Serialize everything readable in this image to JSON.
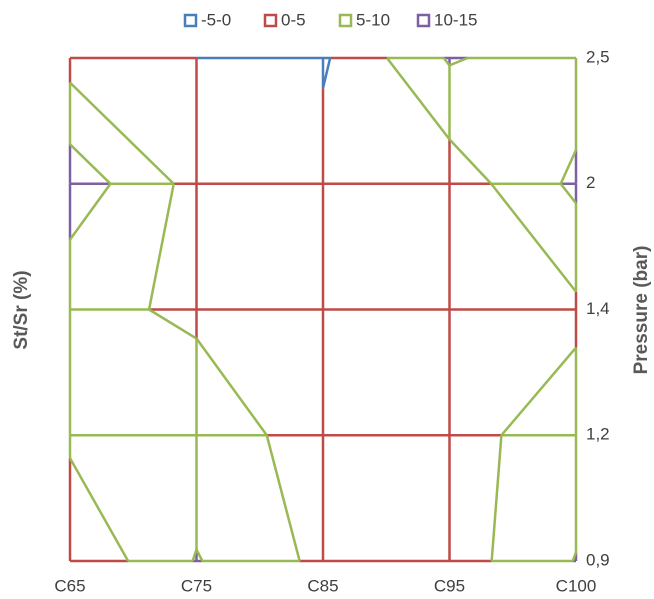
{
  "chart_data": {
    "type": "contour",
    "categories": [
      "C65",
      "C75",
      "C85",
      "C95",
      "C100"
    ],
    "y2categories": [
      "0,9",
      "1,2",
      "1,4",
      "2",
      "2,5"
    ],
    "ytitle": "St/Sr (%)",
    "y2title": "Pressure (bar)",
    "levels": [
      -5,
      0,
      5,
      10,
      15
    ],
    "series": [
      {
        "name": "-5-0",
        "color": "#4a7ebb"
      },
      {
        "name": "0-5",
        "color": "#be4b48"
      },
      {
        "name": "5-10",
        "color": "#98b954"
      },
      {
        "name": "10-15",
        "color": "#7d60a0"
      }
    ],
    "z": [
      [
        0.5,
        10.3,
        3.8,
        2.4,
        10.2
      ],
      [
        6,
        7,
        3.4,
        3.4,
        7.3
      ],
      [
        6,
        4.4,
        3,
        3,
        4
      ],
      [
        13.2,
        3.2,
        2,
        2,
        11.1
      ],
      [
        3,
        0,
        -0.63,
        10.5,
        7
      ]
    ]
  }
}
